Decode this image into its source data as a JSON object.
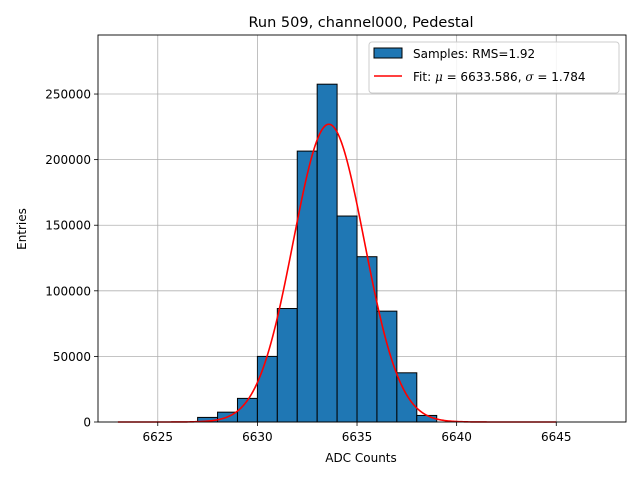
{
  "chart_data": {
    "type": "histogram",
    "title": "Run 509, channel000, Pedestal",
    "xlabel": "ADC Counts",
    "ylabel": "Entries",
    "xlim": [
      6622.0,
      6648.5
    ],
    "ylim": [
      0,
      295000
    ],
    "xticks": [
      6625,
      6630,
      6635,
      6640,
      6645
    ],
    "yticks": [
      0,
      50000,
      100000,
      150000,
      200000,
      250000
    ],
    "grid": true,
    "legend_position": "top-right",
    "histogram": {
      "name": "Samples: RMS=1.92",
      "color": "#1f77b4",
      "edgecolor": "#000000",
      "bins": [
        {
          "left": 6627.0,
          "right": 6628.0,
          "count": 3500
        },
        {
          "left": 6628.0,
          "right": 6629.0,
          "count": 7500
        },
        {
          "left": 6629.0,
          "right": 6630.0,
          "count": 18000
        },
        {
          "left": 6630.0,
          "right": 6631.0,
          "count": 50000
        },
        {
          "left": 6631.0,
          "right": 6632.0,
          "count": 86500
        },
        {
          "left": 6632.0,
          "right": 6633.0,
          "count": 206500
        },
        {
          "left": 6633.0,
          "right": 6634.0,
          "count": 257500
        },
        {
          "left": 6634.0,
          "right": 6635.0,
          "count": 157000
        },
        {
          "left": 6635.0,
          "right": 6636.0,
          "count": 126000
        },
        {
          "left": 6636.0,
          "right": 6637.0,
          "count": 84500
        },
        {
          "left": 6637.0,
          "right": 6638.0,
          "count": 37500
        },
        {
          "left": 6638.0,
          "right": 6639.0,
          "count": 5000
        }
      ]
    },
    "fit": {
      "name_prefix": "Fit: ",
      "mu_symbol": "μ",
      "mu_text": " = 6633.586, ",
      "sigma_symbol": "σ",
      "sigma_text": " = 1.784",
      "color": "#ff0000",
      "mu": 6633.586,
      "sigma": 1.784,
      "amplitude": 227000,
      "x_range": [
        6623.0,
        6645.0
      ]
    }
  }
}
